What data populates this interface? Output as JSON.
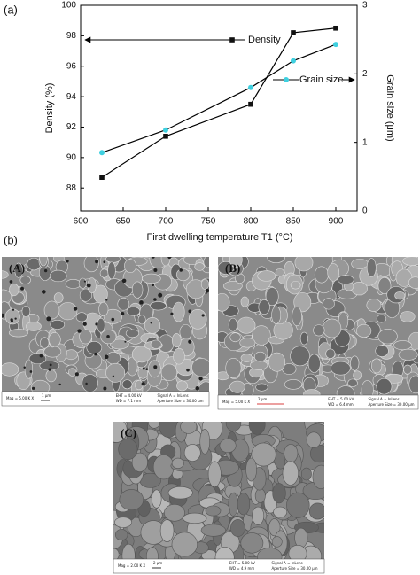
{
  "panel_labels": [
    "(a)",
    "(b)"
  ],
  "chart_data": {
    "type": "line",
    "x_label": "First dwelling temperature T1 (°C)",
    "y_label": "Density (%)",
    "y2_label": "Grain size (μm)",
    "x": [
      625,
      700,
      800,
      850,
      900
    ],
    "line_color": "#000000",
    "series": [
      {
        "name": "Density",
        "color": "#111111",
        "marker": "square",
        "values": [
          88.7,
          91.4,
          93.5,
          98.2,
          98.5
        ]
      },
      {
        "name": "Grain size",
        "color": "#3fd0e0",
        "marker": "circle",
        "axis": "y2",
        "values": [
          0.85,
          1.18,
          1.8,
          2.19,
          2.43
        ]
      }
    ],
    "xlim": [
      600,
      925
    ],
    "xticks": [
      600,
      650,
      700,
      750,
      800,
      850,
      900
    ],
    "ylim": [
      86.5,
      100
    ],
    "yticks": [
      88,
      90,
      92,
      94,
      96,
      98,
      100
    ],
    "y2lim": [
      0,
      3
    ],
    "y2ticks": [
      0,
      1,
      2,
      3
    ]
  },
  "micrographs": [
    {
      "label": "(A)",
      "mag": "Mag = 5.00 K X",
      "scale": "1 μm",
      "eht": "EHT = 4.00 kV",
      "wd": "WD = 7.1 mm",
      "signal": "Signal A = InLens",
      "aperture": "Aperture Size = 30.00 μm"
    },
    {
      "label": "(B)",
      "mag": "Mag = 5.00 K X",
      "scale": "2 μm",
      "eht": "EHT = 5.00 kV",
      "wd": "WD = 6.4 mm",
      "signal": "Signal A = InLens",
      "aperture": "Aperture Size = 30.00 μm"
    },
    {
      "label": "(C)",
      "mag": "Mag = 2.00 K X",
      "scale": "2 μm",
      "eht": "EHT = 5.00 kV",
      "wd": "WD = 4.9 mm",
      "signal": "Signal A = InLens",
      "aperture": "Aperture Size = 30.00 μm"
    }
  ]
}
